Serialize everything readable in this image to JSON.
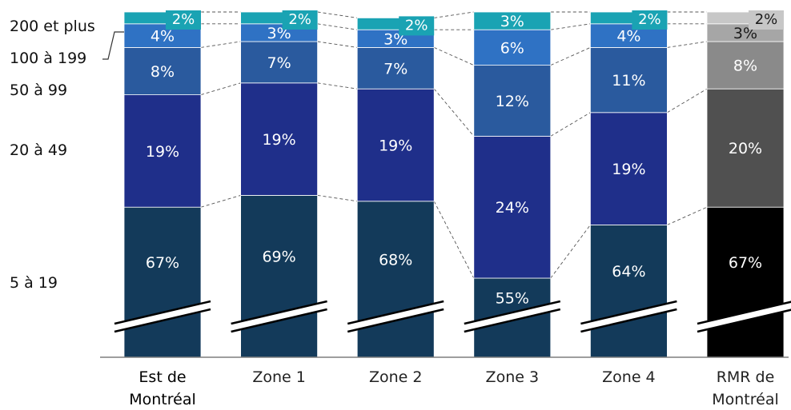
{
  "chart_data": {
    "type": "bar",
    "stacked": true,
    "categories": [
      "Est de Montréal",
      "Zone 1",
      "Zone 2",
      "Zone 3",
      "Zone 4",
      "RMR de Montréal"
    ],
    "category_lines": [
      [
        "Est de",
        "Montréal"
      ],
      [
        "Zone 1"
      ],
      [
        "Zone 2"
      ],
      [
        "Zone 3"
      ],
      [
        "Zone 4"
      ],
      [
        "RMR de",
        "Montréal"
      ]
    ],
    "highlight_category": 0,
    "series": [
      {
        "name": "5 à 19",
        "values": [
          67,
          69,
          68,
          55,
          64,
          67
        ],
        "color": "#133a5a"
      },
      {
        "name": "20 à 49",
        "values": [
          19,
          19,
          19,
          24,
          19,
          20
        ],
        "color": "#1f2f8a"
      },
      {
        "name": "50 à 99",
        "values": [
          8,
          7,
          7,
          12,
          11,
          8
        ],
        "color": "#2a5a9e"
      },
      {
        "name": "100 à 199",
        "values": [
          4,
          3,
          3,
          6,
          4,
          3
        ],
        "color": "#2f72c4"
      },
      {
        "name": "200 et plus",
        "values": [
          2,
          2,
          2,
          3,
          2,
          2
        ],
        "color": "#1aa3b3"
      }
    ],
    "reference_colors": [
      "#000000",
      "#505050",
      "#8a8a8a",
      "#a6a6a6",
      "#c7c7c7"
    ],
    "value_suffix": "%",
    "axis_break": true,
    "legend_placement": "left"
  }
}
